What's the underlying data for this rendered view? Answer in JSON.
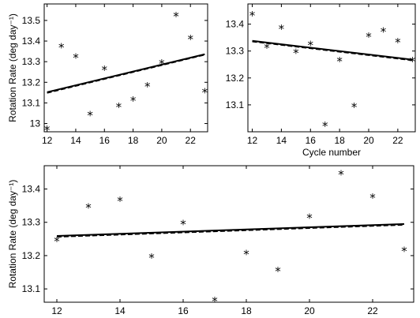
{
  "chart_data": [
    {
      "type": "scatter",
      "xlabel": "",
      "ylabel": "Rotation Rate (deg day⁻¹)",
      "xlim": [
        11.8,
        23.2
      ],
      "ylim": [
        12.96,
        13.58
      ],
      "xticks": [
        12,
        14,
        16,
        18,
        20,
        22
      ],
      "yticks": [
        13,
        13.1,
        13.2,
        13.3,
        13.4,
        13.5
      ],
      "ytick_labels": [
        "13",
        "13.1",
        "13.2",
        "13.3",
        "13.4",
        "13.5"
      ],
      "points": {
        "x": [
          12,
          13,
          14,
          15,
          16,
          17,
          18,
          19,
          20,
          21,
          22,
          23
        ],
        "y": [
          12.98,
          13.38,
          13.33,
          13.05,
          13.27,
          13.09,
          13.12,
          13.19,
          13.3,
          13.53,
          13.42,
          13.16
        ]
      },
      "fit_solid": [
        [
          12,
          13.152
        ],
        [
          23,
          13.336
        ]
      ],
      "fit_dashed": [
        [
          12,
          13.148
        ],
        [
          23,
          13.333
        ]
      ]
    },
    {
      "type": "scatter",
      "xlabel": "Cycle number",
      "ylabel": "",
      "xlim": [
        11.7,
        23.2
      ],
      "ylim": [
        13.0,
        13.475
      ],
      "xticks": [
        12,
        14,
        16,
        18,
        20,
        22
      ],
      "yticks": [
        13.1,
        13.2,
        13.3,
        13.4
      ],
      "ytick_labels": [
        "13.1",
        "13.2",
        "13.3",
        "13.4"
      ],
      "points": {
        "x": [
          12,
          13,
          14,
          15,
          16,
          17,
          18,
          19,
          20,
          21,
          22,
          23
        ],
        "y": [
          13.44,
          13.32,
          13.39,
          13.3,
          13.33,
          13.03,
          13.27,
          13.1,
          13.36,
          13.38,
          13.34,
          13.27
        ]
      },
      "fit_solid": [
        [
          12,
          13.338
        ],
        [
          23,
          13.268
        ]
      ],
      "fit_dashed": [
        [
          12,
          13.335
        ],
        [
          23,
          13.265
        ]
      ]
    },
    {
      "type": "scatter",
      "xlabel": "Cycle number",
      "ylabel": "Rotation Rate (deg day⁻¹)",
      "xlim": [
        11.6,
        23.3
      ],
      "ylim": [
        13.06,
        13.47
      ],
      "xticks": [
        12,
        14,
        16,
        18,
        20,
        22
      ],
      "yticks": [
        13.1,
        13.2,
        13.3,
        13.4
      ],
      "ytick_labels": [
        "13.1",
        "13.2",
        "13.3",
        "13.4"
      ],
      "points": {
        "x": [
          12,
          13,
          14,
          15,
          16,
          17,
          18,
          19,
          20,
          21,
          22,
          23
        ],
        "y": [
          13.25,
          13.35,
          13.37,
          13.2,
          13.3,
          13.07,
          13.21,
          13.16,
          13.32,
          13.45,
          13.38,
          13.22
        ]
      },
      "fit_solid": [
        [
          12,
          13.259
        ],
        [
          23,
          13.295
        ]
      ],
      "fit_dashed": [
        [
          12,
          13.256
        ],
        [
          23,
          13.292
        ]
      ]
    }
  ]
}
